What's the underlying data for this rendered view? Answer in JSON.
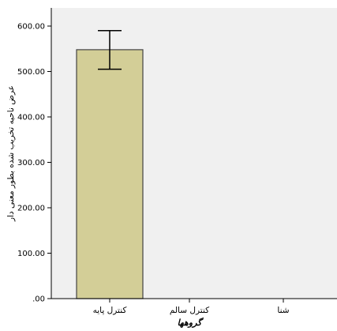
{
  "chart_data": {
    "type": "bar",
    "categories": [
      "کنترل پایه",
      "کنترل سالم",
      "شنا"
    ],
    "values": [
      548,
      null,
      null
    ],
    "error_bars": [
      {
        "low": 505,
        "high": 590
      },
      null,
      null
    ],
    "xlabel": "گروهها",
    "ylabel": "عرض ناحیه تخریب شده بطور معنی دار",
    "ylim": [
      0,
      640
    ],
    "yticks": [
      0,
      100,
      200,
      300,
      400,
      500,
      600
    ],
    "ytick_labels": [
      ".00",
      "100.00",
      "200.00",
      "300.00",
      "400.00",
      "500.00",
      "600.00"
    ],
    "grid": false,
    "colors": {
      "plot_background": "#f0f0f0",
      "bar_fill": "#d3ce97",
      "bar_stroke": "#444444",
      "axis": "#000000"
    }
  }
}
